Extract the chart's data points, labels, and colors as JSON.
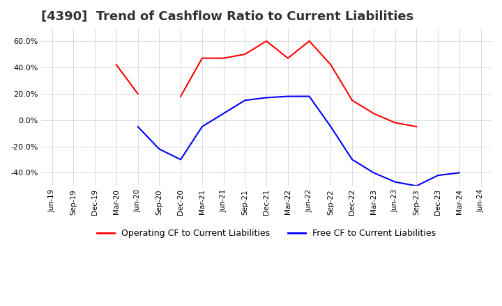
{
  "title": "[4390]  Trend of Cashflow Ratio to Current Liabilities",
  "x_labels": [
    "Jun-19",
    "Sep-19",
    "Dec-19",
    "Mar-20",
    "Jun-20",
    "Sep-20",
    "Dec-20",
    "Mar-21",
    "Jun-21",
    "Sep-21",
    "Dec-21",
    "Mar-22",
    "Jun-22",
    "Sep-22",
    "Dec-22",
    "Mar-23",
    "Jun-23",
    "Sep-23",
    "Dec-23",
    "Mar-24",
    "Jun-24"
  ],
  "operating_cf": [
    null,
    null,
    null,
    0.42,
    0.2,
    null,
    0.18,
    0.47,
    0.47,
    0.5,
    0.6,
    0.47,
    0.6,
    0.42,
    0.15,
    0.05,
    -0.02,
    -0.05,
    null,
    null,
    null
  ],
  "free_cf": [
    null,
    null,
    null,
    null,
    -0.05,
    -0.22,
    -0.3,
    -0.05,
    0.05,
    0.15,
    0.17,
    0.18,
    0.18,
    -0.05,
    -0.3,
    -0.4,
    -0.47,
    -0.5,
    -0.42,
    -0.4,
    null
  ],
  "ylim": [
    -0.5,
    0.7
  ],
  "yticks": [
    -0.4,
    -0.2,
    0.0,
    0.2,
    0.4,
    0.6
  ],
  "operating_color": "#ff0000",
  "free_color": "#0000ff",
  "grid_color": "#cccccc",
  "background_color": "#ffffff",
  "title_fontsize": 13,
  "legend_labels": [
    "Operating CF to Current Liabilities",
    "Free CF to Current Liabilities"
  ]
}
